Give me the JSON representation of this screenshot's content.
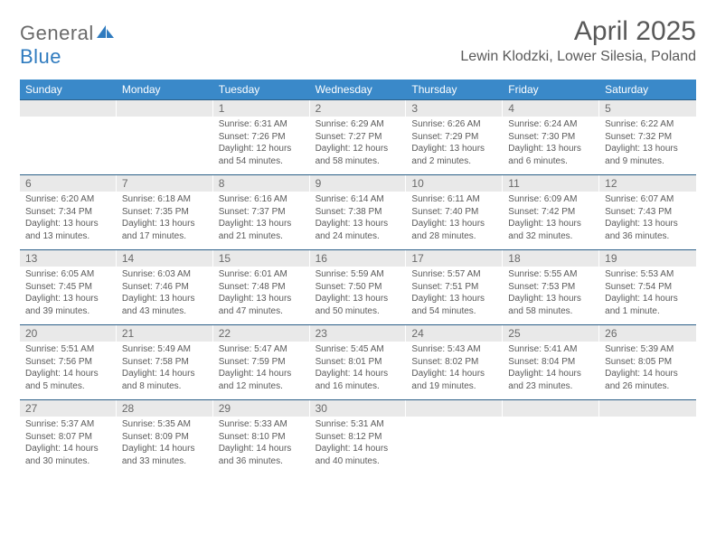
{
  "logo": {
    "general": "General",
    "blue": "Blue"
  },
  "title": "April 2025",
  "location": "Lewin Klodzki, Lower Silesia, Poland",
  "colors": {
    "header_bar": "#3a89c9",
    "row_divider": "#2b5f88",
    "daynum_bg": "#e9e9e9",
    "text_gray": "#595959",
    "body_text": "#5a5a5a",
    "logo_gray": "#6a6a6a",
    "logo_blue": "#2f7bbf"
  },
  "weekdays": [
    "Sunday",
    "Monday",
    "Tuesday",
    "Wednesday",
    "Thursday",
    "Friday",
    "Saturday"
  ],
  "weeks": [
    [
      {
        "n": "",
        "sr": "",
        "ss": "",
        "dl": ""
      },
      {
        "n": "",
        "sr": "",
        "ss": "",
        "dl": ""
      },
      {
        "n": "1",
        "sr": "Sunrise: 6:31 AM",
        "ss": "Sunset: 7:26 PM",
        "dl": "Daylight: 12 hours and 54 minutes."
      },
      {
        "n": "2",
        "sr": "Sunrise: 6:29 AM",
        "ss": "Sunset: 7:27 PM",
        "dl": "Daylight: 12 hours and 58 minutes."
      },
      {
        "n": "3",
        "sr": "Sunrise: 6:26 AM",
        "ss": "Sunset: 7:29 PM",
        "dl": "Daylight: 13 hours and 2 minutes."
      },
      {
        "n": "4",
        "sr": "Sunrise: 6:24 AM",
        "ss": "Sunset: 7:30 PM",
        "dl": "Daylight: 13 hours and 6 minutes."
      },
      {
        "n": "5",
        "sr": "Sunrise: 6:22 AM",
        "ss": "Sunset: 7:32 PM",
        "dl": "Daylight: 13 hours and 9 minutes."
      }
    ],
    [
      {
        "n": "6",
        "sr": "Sunrise: 6:20 AM",
        "ss": "Sunset: 7:34 PM",
        "dl": "Daylight: 13 hours and 13 minutes."
      },
      {
        "n": "7",
        "sr": "Sunrise: 6:18 AM",
        "ss": "Sunset: 7:35 PM",
        "dl": "Daylight: 13 hours and 17 minutes."
      },
      {
        "n": "8",
        "sr": "Sunrise: 6:16 AM",
        "ss": "Sunset: 7:37 PM",
        "dl": "Daylight: 13 hours and 21 minutes."
      },
      {
        "n": "9",
        "sr": "Sunrise: 6:14 AM",
        "ss": "Sunset: 7:38 PM",
        "dl": "Daylight: 13 hours and 24 minutes."
      },
      {
        "n": "10",
        "sr": "Sunrise: 6:11 AM",
        "ss": "Sunset: 7:40 PM",
        "dl": "Daylight: 13 hours and 28 minutes."
      },
      {
        "n": "11",
        "sr": "Sunrise: 6:09 AM",
        "ss": "Sunset: 7:42 PM",
        "dl": "Daylight: 13 hours and 32 minutes."
      },
      {
        "n": "12",
        "sr": "Sunrise: 6:07 AM",
        "ss": "Sunset: 7:43 PM",
        "dl": "Daylight: 13 hours and 36 minutes."
      }
    ],
    [
      {
        "n": "13",
        "sr": "Sunrise: 6:05 AM",
        "ss": "Sunset: 7:45 PM",
        "dl": "Daylight: 13 hours and 39 minutes."
      },
      {
        "n": "14",
        "sr": "Sunrise: 6:03 AM",
        "ss": "Sunset: 7:46 PM",
        "dl": "Daylight: 13 hours and 43 minutes."
      },
      {
        "n": "15",
        "sr": "Sunrise: 6:01 AM",
        "ss": "Sunset: 7:48 PM",
        "dl": "Daylight: 13 hours and 47 minutes."
      },
      {
        "n": "16",
        "sr": "Sunrise: 5:59 AM",
        "ss": "Sunset: 7:50 PM",
        "dl": "Daylight: 13 hours and 50 minutes."
      },
      {
        "n": "17",
        "sr": "Sunrise: 5:57 AM",
        "ss": "Sunset: 7:51 PM",
        "dl": "Daylight: 13 hours and 54 minutes."
      },
      {
        "n": "18",
        "sr": "Sunrise: 5:55 AM",
        "ss": "Sunset: 7:53 PM",
        "dl": "Daylight: 13 hours and 58 minutes."
      },
      {
        "n": "19",
        "sr": "Sunrise: 5:53 AM",
        "ss": "Sunset: 7:54 PM",
        "dl": "Daylight: 14 hours and 1 minute."
      }
    ],
    [
      {
        "n": "20",
        "sr": "Sunrise: 5:51 AM",
        "ss": "Sunset: 7:56 PM",
        "dl": "Daylight: 14 hours and 5 minutes."
      },
      {
        "n": "21",
        "sr": "Sunrise: 5:49 AM",
        "ss": "Sunset: 7:58 PM",
        "dl": "Daylight: 14 hours and 8 minutes."
      },
      {
        "n": "22",
        "sr": "Sunrise: 5:47 AM",
        "ss": "Sunset: 7:59 PM",
        "dl": "Daylight: 14 hours and 12 minutes."
      },
      {
        "n": "23",
        "sr": "Sunrise: 5:45 AM",
        "ss": "Sunset: 8:01 PM",
        "dl": "Daylight: 14 hours and 16 minutes."
      },
      {
        "n": "24",
        "sr": "Sunrise: 5:43 AM",
        "ss": "Sunset: 8:02 PM",
        "dl": "Daylight: 14 hours and 19 minutes."
      },
      {
        "n": "25",
        "sr": "Sunrise: 5:41 AM",
        "ss": "Sunset: 8:04 PM",
        "dl": "Daylight: 14 hours and 23 minutes."
      },
      {
        "n": "26",
        "sr": "Sunrise: 5:39 AM",
        "ss": "Sunset: 8:05 PM",
        "dl": "Daylight: 14 hours and 26 minutes."
      }
    ],
    [
      {
        "n": "27",
        "sr": "Sunrise: 5:37 AM",
        "ss": "Sunset: 8:07 PM",
        "dl": "Daylight: 14 hours and 30 minutes."
      },
      {
        "n": "28",
        "sr": "Sunrise: 5:35 AM",
        "ss": "Sunset: 8:09 PM",
        "dl": "Daylight: 14 hours and 33 minutes."
      },
      {
        "n": "29",
        "sr": "Sunrise: 5:33 AM",
        "ss": "Sunset: 8:10 PM",
        "dl": "Daylight: 14 hours and 36 minutes."
      },
      {
        "n": "30",
        "sr": "Sunrise: 5:31 AM",
        "ss": "Sunset: 8:12 PM",
        "dl": "Daylight: 14 hours and 40 minutes."
      },
      {
        "n": "",
        "sr": "",
        "ss": "",
        "dl": ""
      },
      {
        "n": "",
        "sr": "",
        "ss": "",
        "dl": ""
      },
      {
        "n": "",
        "sr": "",
        "ss": "",
        "dl": ""
      }
    ]
  ]
}
